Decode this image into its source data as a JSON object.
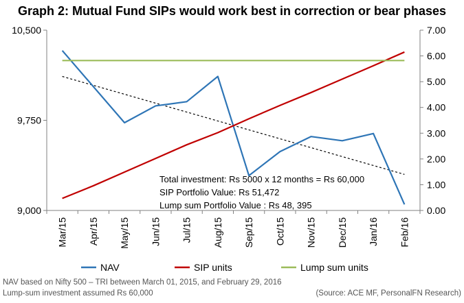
{
  "chart_data": {
    "type": "line",
    "title": "Graph 2: Mutual Fund SIPs would work best in correction or bear phases",
    "categories": [
      "Mar/15",
      "Apr/15",
      "May/15",
      "Jun/15",
      "Jul/15",
      "Aug/15",
      "Sep/15",
      "Oct/15",
      "Nov/15",
      "Dec/15",
      "Jan/16",
      "Feb/16"
    ],
    "y_left": {
      "min": 9000,
      "max": 10500,
      "ticks": [
        "9,000",
        "9,750",
        "10,500"
      ],
      "tick_values": [
        9000,
        9750,
        10500
      ]
    },
    "y_right": {
      "min": 0,
      "max": 7,
      "ticks": [
        "0.00",
        "1.00",
        "2.00",
        "3.00",
        "4.00",
        "5.00",
        "6.00",
        "7.00"
      ],
      "tick_values": [
        0,
        1,
        2,
        3,
        4,
        5,
        6,
        7
      ]
    },
    "series": [
      {
        "name": "NAV",
        "axis": "left",
        "color": "#2e75b6",
        "values": [
          10330,
          10030,
          9730,
          9870,
          9905,
          10115,
          9290,
          9490,
          9615,
          9580,
          9640,
          9050
        ]
      },
      {
        "name": "SIP units",
        "axis": "right",
        "color": "#c00000",
        "values": [
          0.47,
          0.96,
          1.49,
          2.02,
          2.55,
          3.02,
          3.56,
          4.08,
          4.58,
          5.1,
          5.62,
          6.15
        ]
      },
      {
        "name": "Lump sum units",
        "axis": "right",
        "color": "#9bbb59",
        "values": [
          5.82,
          5.82,
          5.82,
          5.82,
          5.82,
          5.82,
          5.82,
          5.82,
          5.82,
          5.82,
          5.82,
          5.82
        ]
      }
    ],
    "trendline": {
      "series": "NAV",
      "style": "dotted",
      "color": "#000000",
      "from": {
        "category": "Mar/15",
        "value": 10115
      },
      "to": {
        "category": "Feb/16",
        "value": 9300
      }
    },
    "annotations": [
      "Total investment: Rs 5000 x 12 months = Rs 60,000",
      "SIP Portfolio Value: Rs 51,472",
      "Lump sum Portfolio Value : Rs 48, 395"
    ],
    "legend": [
      "NAV",
      "SIP units",
      "Lump sum units"
    ],
    "legend_position": "bottom",
    "grid": false
  },
  "footer": {
    "line1": "NAV based on Nifty 500 – TRI between  March 01, 2015, and February 29, 2016",
    "line2": "Lump-sum investment  assumed Rs 60,000",
    "source": "(Source: ACE MF, PersonalFN Research)"
  }
}
